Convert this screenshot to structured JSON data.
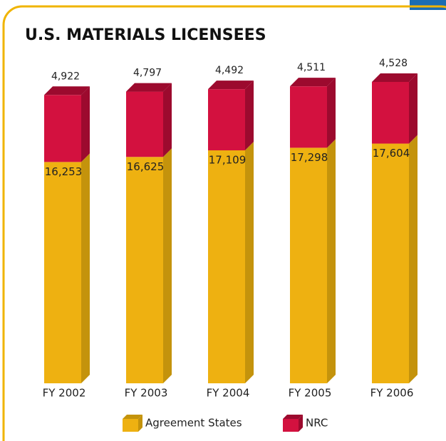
{
  "chart_data": {
    "type": "stacked_bar_3d",
    "title": "U.S. MATERIALS LICENSEES",
    "categories": [
      "FY 2002",
      "FY 2003",
      "FY 2004",
      "FY 2005",
      "FY 2006"
    ],
    "series": [
      {
        "name": "Agreement States",
        "color": "#eeb111",
        "side_color": "#c4930c",
        "values": [
          16253,
          16625,
          17109,
          17298,
          17604
        ],
        "value_labels": [
          "16,253",
          "16,625",
          "17,109",
          "17,298",
          "17,604"
        ]
      },
      {
        "name": "NRC",
        "color": "#d3113f",
        "side_color": "#9c0a2e",
        "values": [
          4922,
          4797,
          4492,
          4511,
          4528
        ],
        "value_labels": [
          "4,922",
          "4,797",
          "4,492",
          "4,511",
          "4,528"
        ]
      }
    ]
  }
}
